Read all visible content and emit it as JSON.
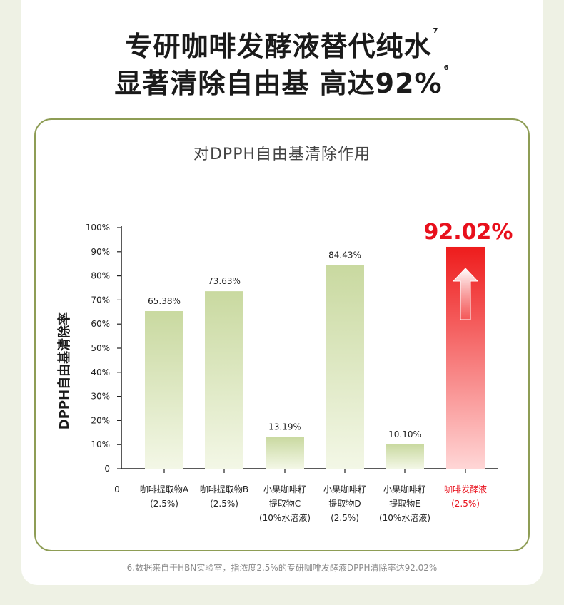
{
  "headline": {
    "line1": "专研咖啡发酵液替代纯水",
    "line1_sup": "7",
    "line2": "显著清除自由基 高达92%",
    "line2_sup": "6"
  },
  "footnote": "6.数据来自于HBN实验室，指浓度2.5%的专研咖啡发酵液DPPH清除率达92.02%",
  "colors": {
    "green_bar_top": "#c9d9a0",
    "green_bar_bottom": "#f3f7e6",
    "red_bar_top": "#ee1c1c",
    "red_bar_bottom": "#ffd6d6",
    "frame": "#8e9d55",
    "highlight_text": "#e8101c"
  },
  "chart_data": {
    "type": "bar",
    "title": "对DPPH自由基清除作用",
    "ylabel": "DPPH自由基清除率",
    "xlabel": "",
    "ylim": [
      0,
      100
    ],
    "origin_label": "0",
    "yticks": [
      "0",
      "10%",
      "20%",
      "30%",
      "40%",
      "50%",
      "60%",
      "70%",
      "80%",
      "90%",
      "100%"
    ],
    "categories": [
      [
        "咖啡提取物A",
        "(2.5%)"
      ],
      [
        "咖啡提取物B",
        "(2.5%)"
      ],
      [
        "小果咖啡籽",
        "提取物C",
        "(10%水溶液)"
      ],
      [
        "小果咖啡籽",
        "提取物D",
        "(2.5%)"
      ],
      [
        "小果咖啡籽",
        "提取物E",
        "(10%水溶液)"
      ],
      [
        "咖啡发酵液",
        "(2.5%)"
      ]
    ],
    "values": [
      65.38,
      73.63,
      13.19,
      84.43,
      10.1,
      92.02
    ],
    "value_labels": [
      "65.38%",
      "73.63%",
      "13.19%",
      "84.43%",
      "10.10%",
      "92.02%"
    ],
    "highlight_index": 5,
    "grid": false,
    "legend": "none"
  }
}
